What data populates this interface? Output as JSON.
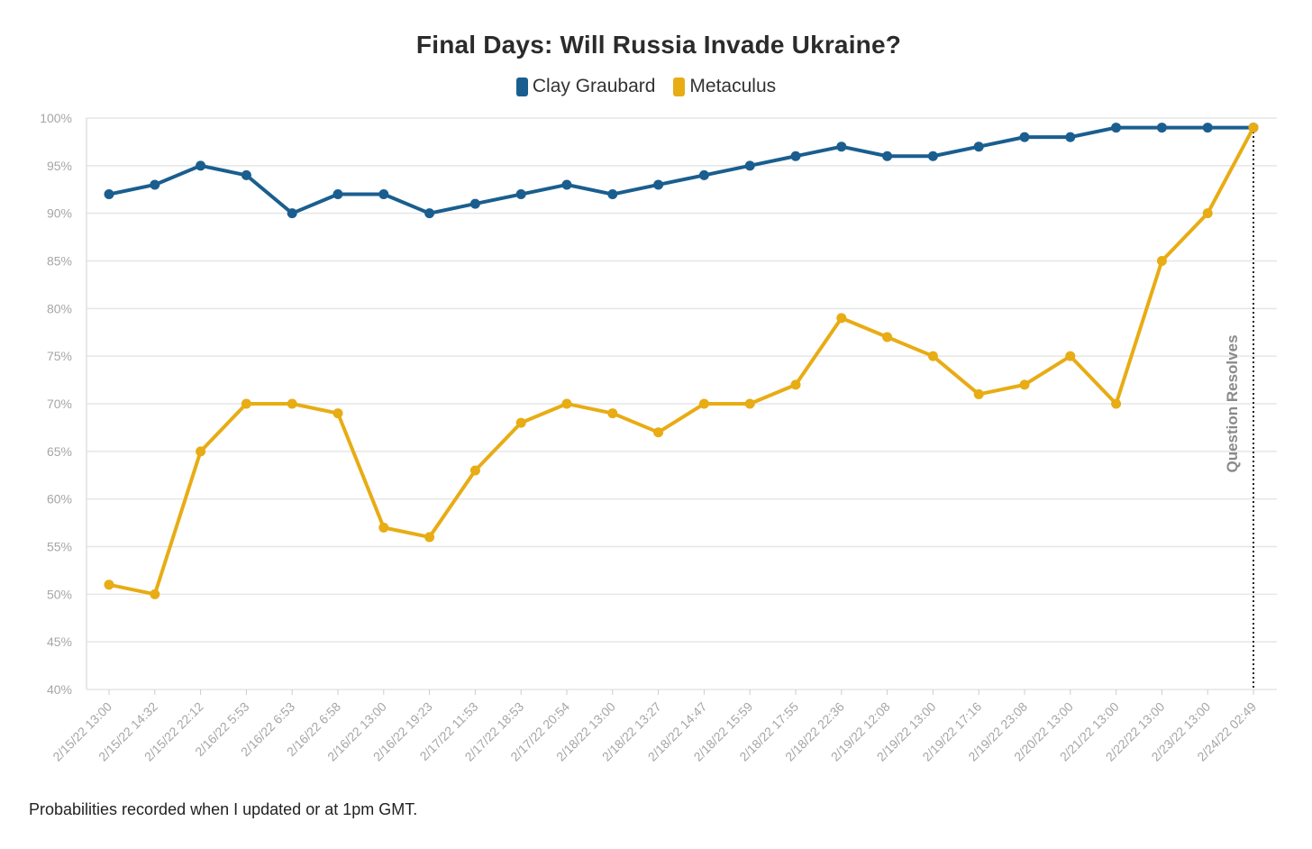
{
  "chart_data": {
    "type": "line",
    "title": "Final Days: Will Russia Invade Ukraine?",
    "xlabel": "",
    "ylabel": "",
    "ylim": [
      40,
      100
    ],
    "y_ticks": [
      "40%",
      "45%",
      "50%",
      "55%",
      "60%",
      "65%",
      "70%",
      "75%",
      "80%",
      "85%",
      "90%",
      "95%",
      "100%"
    ],
    "grid": true,
    "legend_position": "top-center",
    "x": [
      "2/15/22 13:00",
      "2/15/22 14:32",
      "2/15/22 22:12",
      "2/16/22 5:53",
      "2/16/22 6:53",
      "2/16/22 6:58",
      "2/16/22 13:00",
      "2/16/22 19:23",
      "2/17/22 11:53",
      "2/17/22 18:53",
      "2/17/22 20:54",
      "2/18/22 13:00",
      "2/18/22 13:27",
      "2/18/22 14:47",
      "2/18/22 15:59",
      "2/18/22 17:55",
      "2/18/22 22:36",
      "2/19/22 12:08",
      "2/19/22 13:00",
      "2/19/22 17:16",
      "2/19/22 23:08",
      "2/20/22 13:00",
      "2/21/22 13:00",
      "2/22/22 13:00",
      "2/23/22 13:00",
      "2/24/22 02:49"
    ],
    "series": [
      {
        "name": "Clay Graubard",
        "color": "#1a5e8f",
        "values": [
          92,
          93,
          95,
          94,
          90,
          92,
          92,
          90,
          91,
          92,
          93,
          92,
          93,
          94,
          95,
          96,
          97,
          96,
          96,
          97,
          98,
          98,
          99,
          99,
          99,
          99
        ]
      },
      {
        "name": "Metaculus",
        "color": "#e8ac14",
        "values": [
          51,
          50,
          65,
          70,
          70,
          69,
          57,
          56,
          63,
          68,
          70,
          69,
          67,
          70,
          70,
          72,
          79,
          77,
          75,
          71,
          72,
          75,
          70,
          85,
          90,
          99
        ]
      }
    ],
    "annotations": [
      {
        "label": "Question Resolves",
        "x": "2/24/22 02:49",
        "style": "dotted-vertical-line"
      }
    ]
  },
  "footnote": "Probabilities recorded when I updated or at 1pm GMT."
}
